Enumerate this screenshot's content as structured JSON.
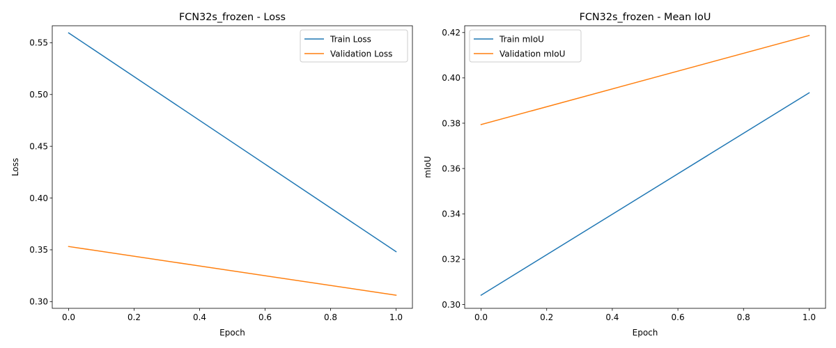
{
  "chart_data": [
    {
      "type": "line",
      "title": "FCN32s_frozen - Loss",
      "xlabel": "Epoch",
      "ylabel": "Loss",
      "xlim": [
        -0.05,
        1.05
      ],
      "ylim": [
        0.2935,
        0.5664
      ],
      "xticks": [
        0.0,
        0.2,
        0.4,
        0.6,
        0.8,
        1.0
      ],
      "xtick_labels": [
        "0.0",
        "0.2",
        "0.4",
        "0.6",
        "0.8",
        "1.0"
      ],
      "yticks": [
        0.3,
        0.35,
        0.4,
        0.45,
        0.5,
        0.55
      ],
      "ytick_labels": [
        "0.30",
        "0.35",
        "0.40",
        "0.45",
        "0.50",
        "0.55"
      ],
      "legend_position": "top-right",
      "grid": false,
      "x": [
        0,
        1
      ],
      "series": [
        {
          "name": "Train Loss",
          "color": "#1f77b4",
          "values": [
            0.5595,
            0.3482
          ]
        },
        {
          "name": "Validation Loss",
          "color": "#ff7f0e",
          "values": [
            0.3532,
            0.3062
          ]
        }
      ]
    },
    {
      "type": "line",
      "title": "FCN32s_frozen - Mean IoU",
      "xlabel": "Epoch",
      "ylabel": "mIoU",
      "xlim": [
        -0.05,
        1.05
      ],
      "ylim": [
        0.2983,
        0.423
      ],
      "xticks": [
        0.0,
        0.2,
        0.4,
        0.6,
        0.8,
        1.0
      ],
      "xtick_labels": [
        "0.0",
        "0.2",
        "0.4",
        "0.6",
        "0.8",
        "1.0"
      ],
      "yticks": [
        0.3,
        0.32,
        0.34,
        0.36,
        0.38,
        0.4,
        0.42
      ],
      "ytick_labels": [
        "0.30",
        "0.32",
        "0.34",
        "0.36",
        "0.38",
        "0.40",
        "0.42"
      ],
      "legend_position": "top-left",
      "grid": false,
      "x": [
        0,
        1
      ],
      "series": [
        {
          "name": "Train mIoU",
          "color": "#1f77b4",
          "values": [
            0.3041,
            0.3934
          ]
        },
        {
          "name": "Validation mIoU",
          "color": "#ff7f0e",
          "values": [
            0.3794,
            0.4187
          ]
        }
      ]
    }
  ]
}
